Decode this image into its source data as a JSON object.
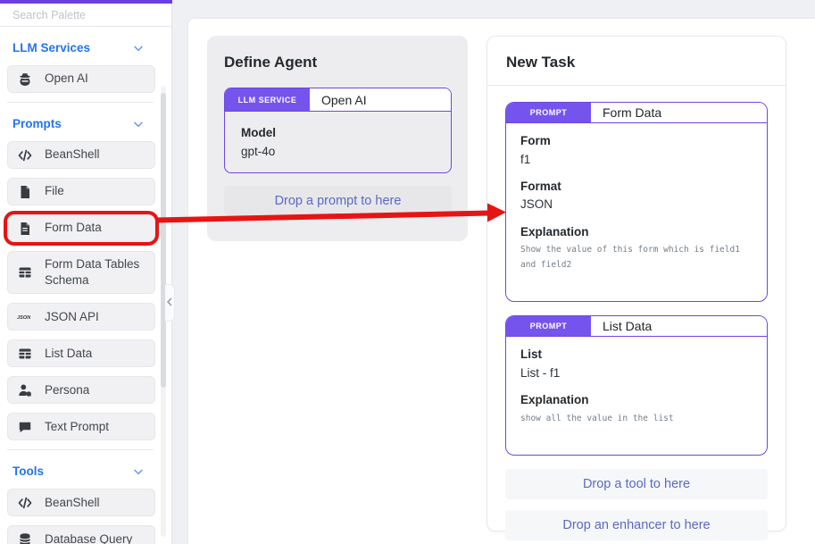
{
  "sidebar": {
    "search_placeholder": "Search Palette",
    "sections": [
      {
        "label": "LLM Services",
        "items": [
          {
            "label": "Open AI",
            "icon": "agent-icon"
          }
        ]
      },
      {
        "label": "Prompts",
        "items": [
          {
            "label": "BeanShell",
            "icon": "code-icon"
          },
          {
            "label": "File",
            "icon": "file-icon"
          },
          {
            "label": "Form Data",
            "icon": "file-text-icon",
            "highlighted": true
          },
          {
            "label": "Form Data Tables Schema",
            "icon": "table-icon"
          },
          {
            "label": "JSON API",
            "icon": "json-icon"
          },
          {
            "label": "List Data",
            "icon": "table-icon"
          },
          {
            "label": "Persona",
            "icon": "persona-icon"
          },
          {
            "label": "Text Prompt",
            "icon": "chat-icon"
          }
        ]
      },
      {
        "label": "Tools",
        "items": [
          {
            "label": "BeanShell",
            "icon": "code-icon"
          },
          {
            "label": "Database Query",
            "icon": "database-icon"
          }
        ]
      }
    ]
  },
  "define_agent": {
    "title": "Define Agent",
    "llm_card": {
      "tab": "LLM SERVICE",
      "name": "Open AI",
      "fields": [
        {
          "label": "Model",
          "value": "gpt-4o",
          "mono": false
        }
      ]
    },
    "drop_hint": "Drop a prompt to here"
  },
  "new_task": {
    "title": "New Task",
    "prompt_cards": [
      {
        "tab": "PROMPT",
        "name": "Form Data",
        "fields": [
          {
            "label": "Form",
            "value": "f1",
            "mono": false
          },
          {
            "label": "Format",
            "value": "JSON",
            "mono": false
          },
          {
            "label": "Explanation",
            "value": "Show the value of this form which is field1\nand field2",
            "mono": true
          }
        ]
      },
      {
        "tab": "PROMPT",
        "name": "List Data",
        "fields": [
          {
            "label": "List",
            "value": "List - f1",
            "mono": false
          },
          {
            "label": "Explanation",
            "value": "show all the value in the list",
            "mono": true
          }
        ]
      }
    ],
    "drop_hints": [
      "Drop a tool to here",
      "Drop an enhancer to here"
    ]
  },
  "colors": {
    "accent_purple": "#7554ee",
    "purple_border": "#6c47e4",
    "section_blue": "#2273f2",
    "drop_hint_text": "#5a6ac1",
    "annotation_red": "#e71414"
  }
}
